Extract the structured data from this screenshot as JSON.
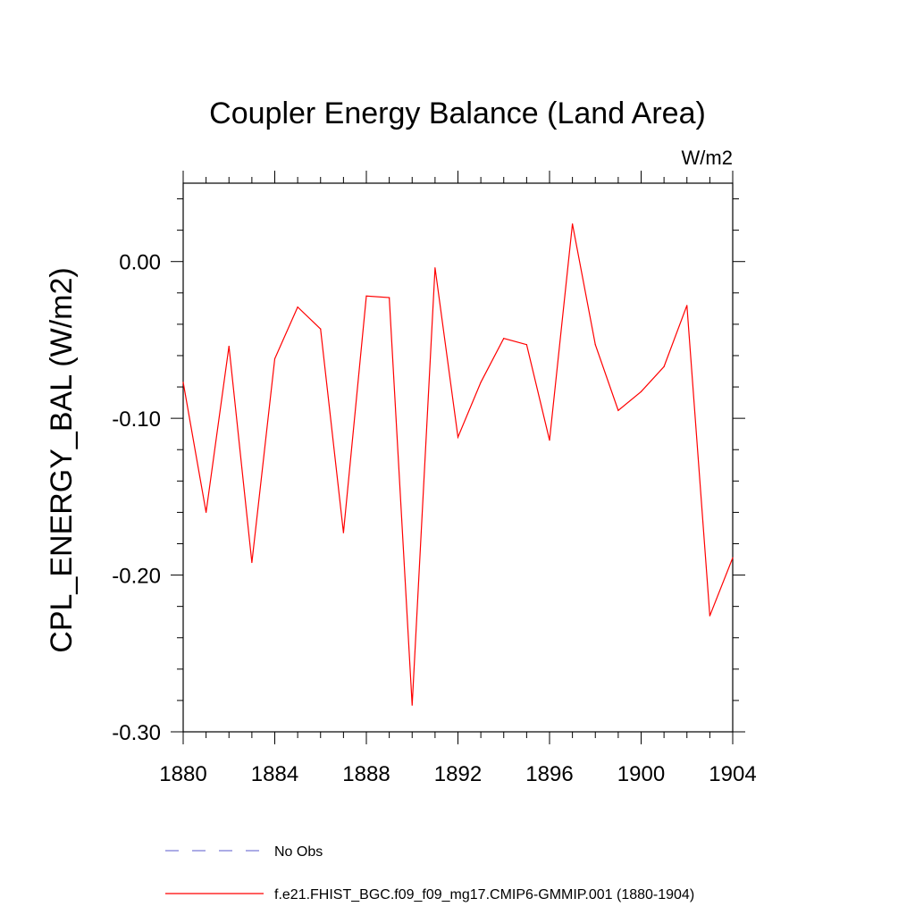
{
  "chart_data": {
    "type": "line",
    "title": "Coupler Energy Balance (Land Area)",
    "units": "W/m2",
    "xlabel": "",
    "ylabel": "CPL_ENERGY_BAL  (W/m2)",
    "xlim": [
      1880,
      1904
    ],
    "ylim": [
      -0.3,
      0.05
    ],
    "x_ticks": [
      1880,
      1884,
      1888,
      1892,
      1896,
      1900,
      1904
    ],
    "x_tick_labels": [
      "1880",
      "1884",
      "1888",
      "1892",
      "1896",
      "1900",
      "1904"
    ],
    "y_ticks": [
      -0.3,
      -0.2,
      -0.1,
      0.0
    ],
    "y_tick_labels": [
      "-0.30",
      "-0.20",
      "-0.10",
      "0.00"
    ],
    "x": [
      1880,
      1881,
      1882,
      1883,
      1884,
      1885,
      1886,
      1887,
      1888,
      1889,
      1890,
      1891,
      1892,
      1893,
      1894,
      1895,
      1896,
      1897,
      1898,
      1899,
      1900,
      1901,
      1902,
      1903,
      1904
    ],
    "series": [
      {
        "name": "f.e21.FHIST_BGC.f09_f09_mg17.CMIP6-GMMIP.001 (1880-1904)",
        "color": "#ff0000",
        "style": "solid",
        "values": [
          -0.077,
          -0.16,
          -0.054,
          -0.192,
          -0.062,
          -0.029,
          -0.043,
          -0.173,
          -0.022,
          -0.023,
          -0.283,
          -0.004,
          -0.112,
          -0.077,
          -0.049,
          -0.053,
          -0.114,
          0.024,
          -0.053,
          -0.095,
          -0.083,
          -0.067,
          -0.028,
          -0.226,
          -0.189
        ]
      }
    ],
    "legend": [
      {
        "label": "No Obs",
        "color": "#7b7bd6",
        "style": "dashed"
      },
      {
        "label": "f.e21.FHIST_BGC.f09_f09_mg17.CMIP6-GMMIP.001 (1880-1904)",
        "color": "#ff0000",
        "style": "solid"
      }
    ]
  }
}
